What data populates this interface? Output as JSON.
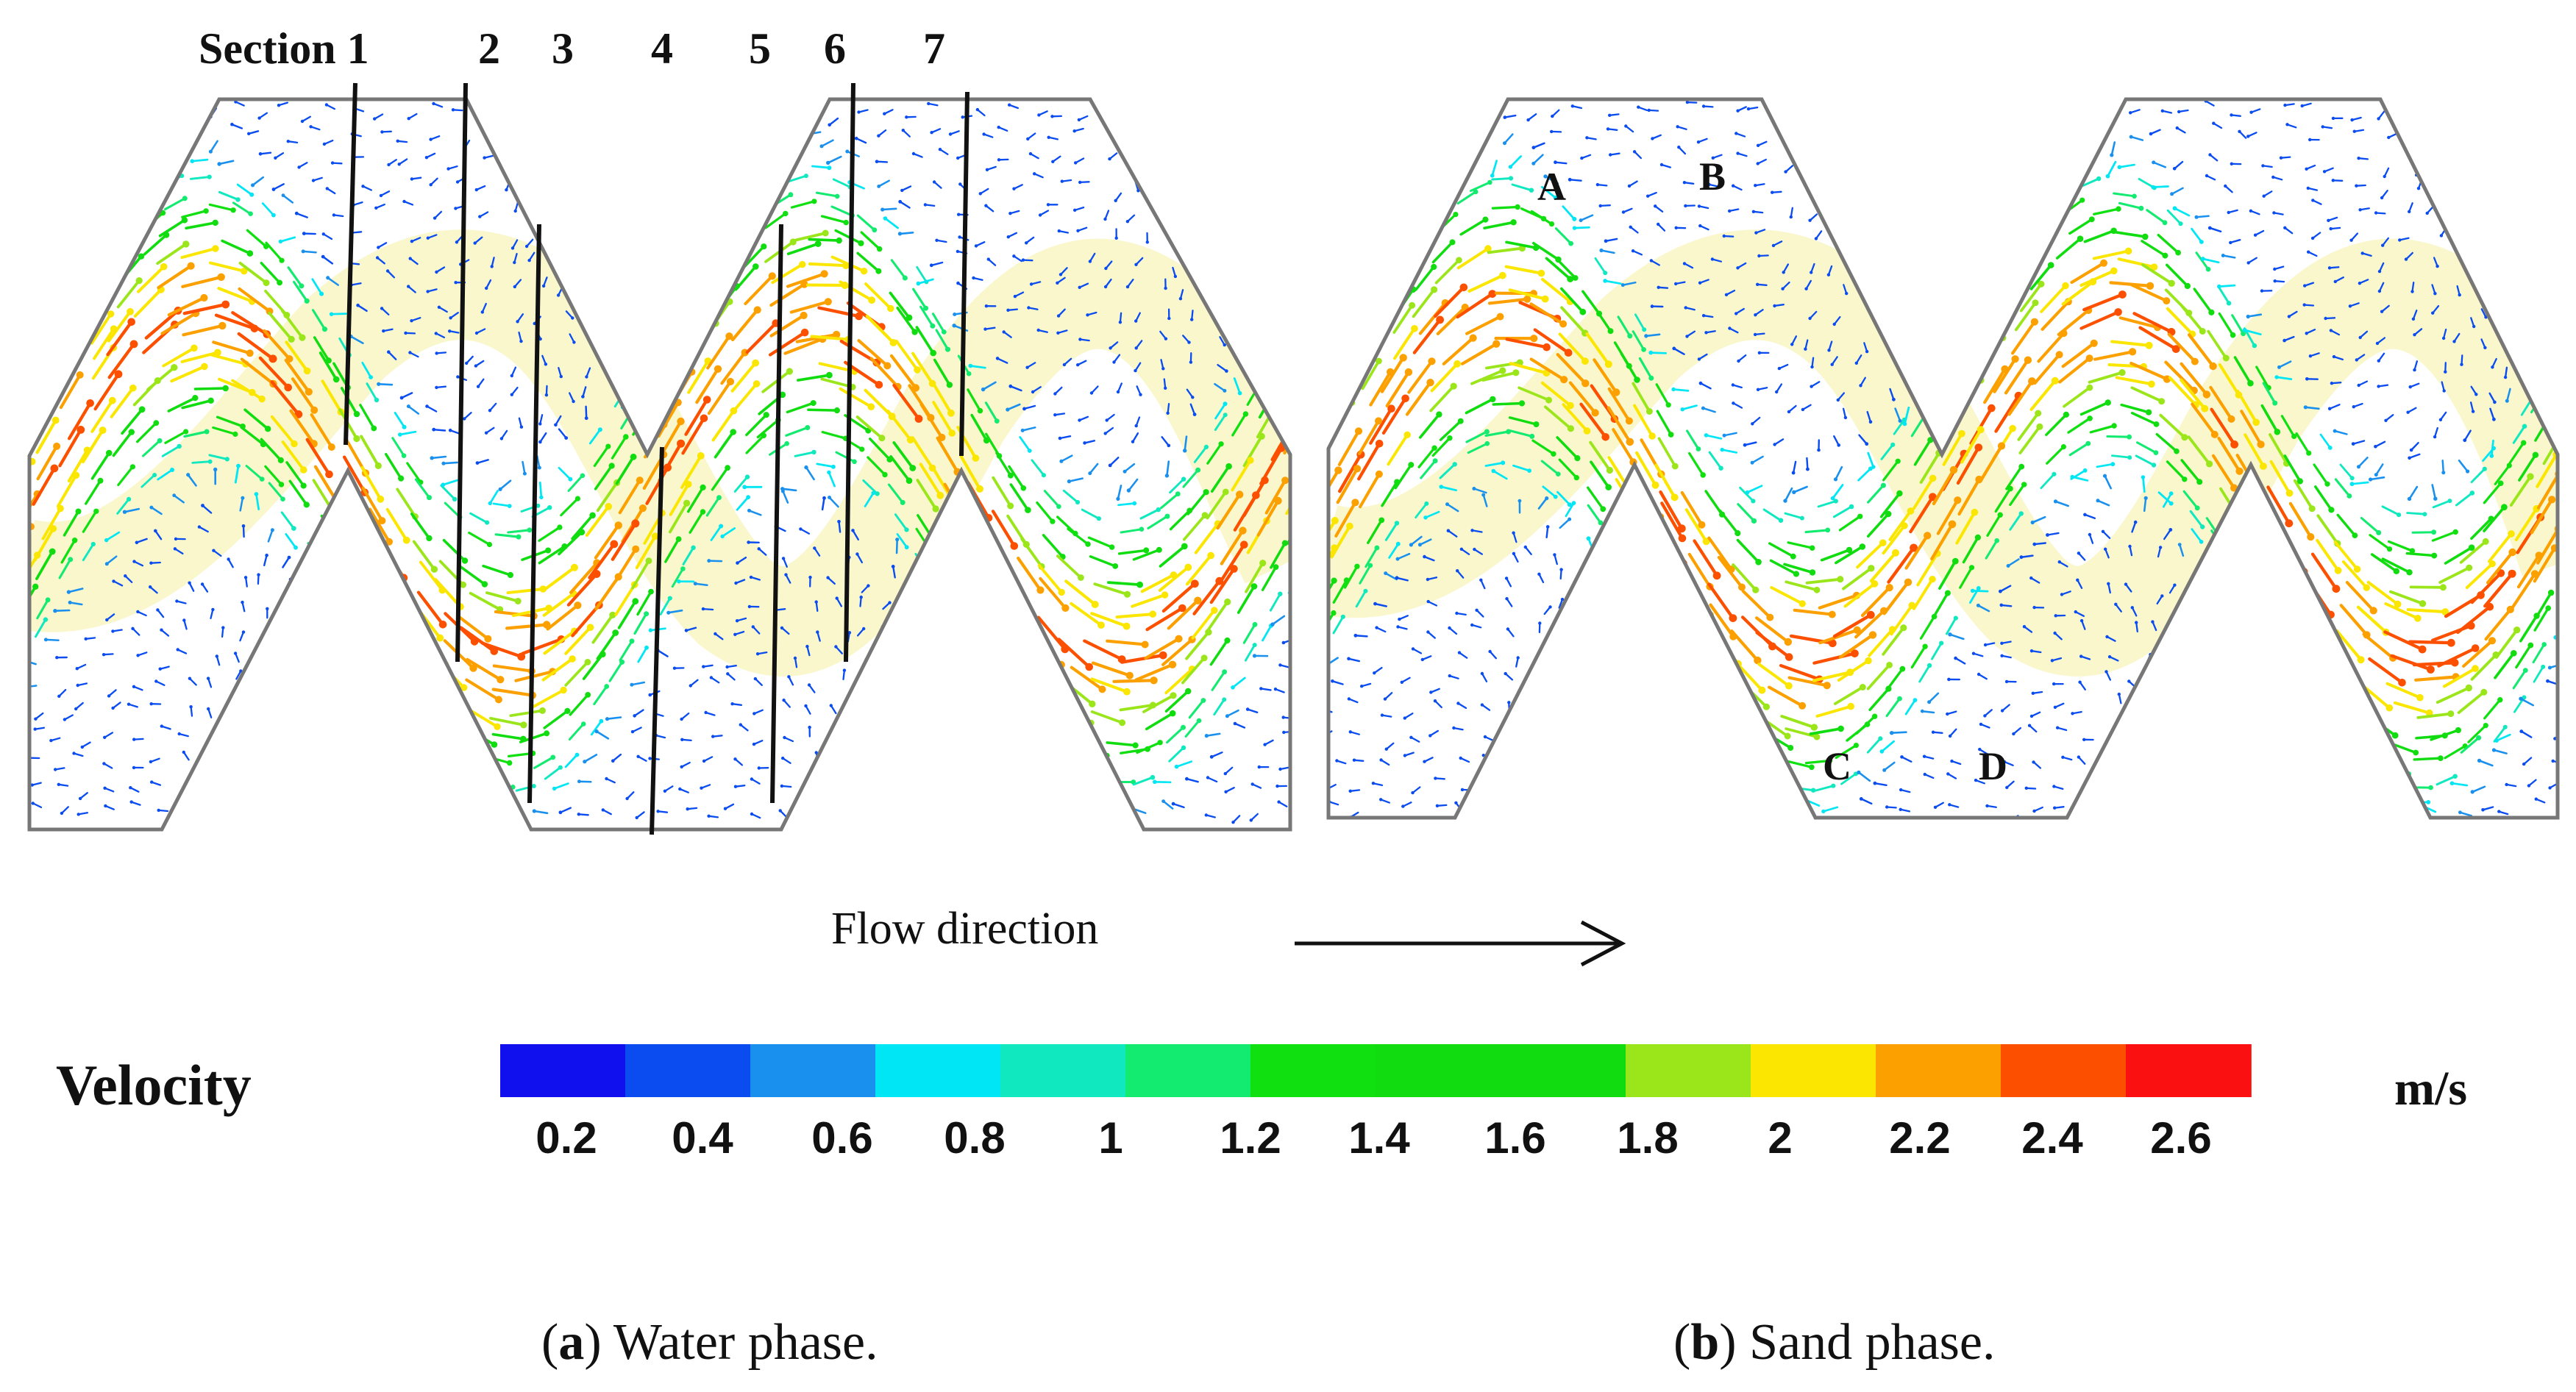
{
  "panel_a": {
    "sections": [
      {
        "label": "Section 1"
      },
      {
        "label": "2"
      },
      {
        "label": "3"
      },
      {
        "label": "4"
      },
      {
        "label": "5"
      },
      {
        "label": "6"
      },
      {
        "label": "7"
      }
    ]
  },
  "panel_b": {
    "points": [
      {
        "label": "A"
      },
      {
        "label": "B"
      },
      {
        "label": "C"
      },
      {
        "label": "D"
      }
    ]
  },
  "flow_direction": {
    "label": "Flow direction"
  },
  "legend": {
    "title": "Velocity",
    "units": "m/s",
    "colors": [
      "#1010ee",
      "#0a4cf0",
      "#1a90ee",
      "#00e6f4",
      "#10e8c0",
      "#12ea70",
      "#10e010",
      "#10dc10",
      "#10dc10",
      "#9ae61a",
      "#fae600",
      "#fca000",
      "#fc5000",
      "#fa1010"
    ],
    "ticks": [
      "0.2",
      "0.4",
      "0.6",
      "0.8",
      "1",
      "1.2",
      "1.4",
      "1.6",
      "1.8",
      "2",
      "2.2",
      "2.4",
      "2.6"
    ]
  },
  "captions": {
    "a_letter": "a",
    "a_text": "Water phase.",
    "b_letter": "b",
    "b_text": "Sand phase."
  }
}
